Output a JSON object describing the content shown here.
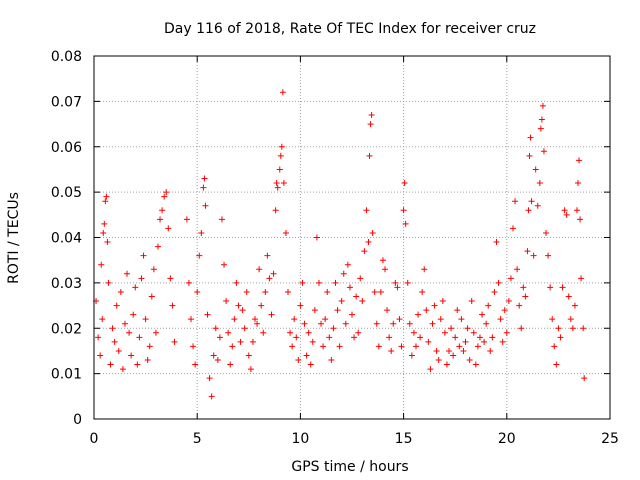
{
  "chart_data": {
    "type": "scatter",
    "title": "Day 116 of 2018, Rate Of TEC Index for receiver cruz",
    "xlabel": "GPS time / hours",
    "ylabel": "ROTI / TECUs",
    "xlim": [
      0,
      25
    ],
    "ylim": [
      0,
      0.08
    ],
    "xticks": [
      0,
      5,
      10,
      15,
      20,
      25
    ],
    "xtick_labels": [
      "0",
      "5",
      "10",
      "15",
      "20",
      "25"
    ],
    "yticks": [
      0,
      0.01,
      0.02,
      0.03,
      0.04,
      0.05,
      0.06,
      0.07,
      0.08
    ],
    "ytick_labels": [
      "0",
      "0.01",
      "0.02",
      "0.03",
      "0.04",
      "0.05",
      "0.06",
      "0.07",
      "0.08"
    ],
    "grid": true,
    "legend": "none",
    "marker": "plus",
    "marker_color": "#ff0000",
    "series": [
      {
        "name": "ROTI",
        "points": [
          [
            0.1,
            0.026
          ],
          [
            0.2,
            0.018
          ],
          [
            0.3,
            0.014
          ],
          [
            0.35,
            0.034
          ],
          [
            0.4,
            0.022
          ],
          [
            0.45,
            0.041
          ],
          [
            0.5,
            0.043
          ],
          [
            0.55,
            0.048
          ],
          [
            0.6,
            0.049
          ],
          [
            0.65,
            0.039
          ],
          [
            0.7,
            0.03
          ],
          [
            0.8,
            0.012
          ],
          [
            0.9,
            0.02
          ],
          [
            1.0,
            0.017
          ],
          [
            1.1,
            0.025
          ],
          [
            1.2,
            0.015
          ],
          [
            1.3,
            0.028
          ],
          [
            1.4,
            0.011
          ],
          [
            1.5,
            0.021
          ],
          [
            1.6,
            0.032
          ],
          [
            1.7,
            0.019
          ],
          [
            1.8,
            0.014
          ],
          [
            1.9,
            0.023
          ],
          [
            2.0,
            0.029
          ],
          [
            2.1,
            0.012
          ],
          [
            2.2,
            0.018
          ],
          [
            2.3,
            0.031
          ],
          [
            2.4,
            0.036
          ],
          [
            2.5,
            0.022
          ],
          [
            2.6,
            0.013
          ],
          [
            2.7,
            0.016
          ],
          [
            2.8,
            0.027
          ],
          [
            2.9,
            0.033
          ],
          [
            3.0,
            0.019
          ],
          [
            3.1,
            0.038
          ],
          [
            3.2,
            0.044
          ],
          [
            3.3,
            0.046
          ],
          [
            3.4,
            0.049
          ],
          [
            3.5,
            0.05
          ],
          [
            3.6,
            0.042
          ],
          [
            3.7,
            0.031
          ],
          [
            3.8,
            0.025
          ],
          [
            3.9,
            0.017
          ],
          [
            4.5,
            0.044
          ],
          [
            4.6,
            0.03
          ],
          [
            4.7,
            0.022
          ],
          [
            4.8,
            0.016
          ],
          [
            4.9,
            0.012
          ],
          [
            5.0,
            0.028
          ],
          [
            5.1,
            0.036
          ],
          [
            5.2,
            0.041
          ],
          [
            5.3,
            0.051
          ],
          [
            5.35,
            0.053
          ],
          [
            5.4,
            0.047
          ],
          [
            5.5,
            0.023
          ],
          [
            5.6,
            0.009
          ],
          [
            5.7,
            0.005
          ],
          [
            5.8,
            0.014
          ],
          [
            5.9,
            0.02
          ],
          [
            6.0,
            0.013
          ],
          [
            6.1,
            0.018
          ],
          [
            6.2,
            0.044
          ],
          [
            6.3,
            0.034
          ],
          [
            6.4,
            0.026
          ],
          [
            6.5,
            0.019
          ],
          [
            6.6,
            0.012
          ],
          [
            6.7,
            0.016
          ],
          [
            6.8,
            0.022
          ],
          [
            6.9,
            0.03
          ],
          [
            7.0,
            0.025
          ],
          [
            7.1,
            0.017
          ],
          [
            7.2,
            0.024
          ],
          [
            7.3,
            0.02
          ],
          [
            7.4,
            0.028
          ],
          [
            7.5,
            0.014
          ],
          [
            7.6,
            0.011
          ],
          [
            7.7,
            0.017
          ],
          [
            7.8,
            0.022
          ],
          [
            7.9,
            0.021
          ],
          [
            8.0,
            0.033
          ],
          [
            8.1,
            0.025
          ],
          [
            8.2,
            0.019
          ],
          [
            8.3,
            0.028
          ],
          [
            8.4,
            0.036
          ],
          [
            8.5,
            0.031
          ],
          [
            8.6,
            0.023
          ],
          [
            8.7,
            0.032
          ],
          [
            8.8,
            0.046
          ],
          [
            8.85,
            0.052
          ],
          [
            8.9,
            0.051
          ],
          [
            9.0,
            0.055
          ],
          [
            9.05,
            0.058
          ],
          [
            9.1,
            0.06
          ],
          [
            9.15,
            0.072
          ],
          [
            9.2,
            0.052
          ],
          [
            9.3,
            0.041
          ],
          [
            9.4,
            0.028
          ],
          [
            9.5,
            0.019
          ],
          [
            9.6,
            0.016
          ],
          [
            9.7,
            0.022
          ],
          [
            9.8,
            0.018
          ],
          [
            9.9,
            0.013
          ],
          [
            10.0,
            0.025
          ],
          [
            10.1,
            0.03
          ],
          [
            10.2,
            0.021
          ],
          [
            10.3,
            0.014
          ],
          [
            10.4,
            0.019
          ],
          [
            10.5,
            0.012
          ],
          [
            10.6,
            0.017
          ],
          [
            10.7,
            0.024
          ],
          [
            10.8,
            0.04
          ],
          [
            10.9,
            0.03
          ],
          [
            11.0,
            0.021
          ],
          [
            11.1,
            0.016
          ],
          [
            11.2,
            0.022
          ],
          [
            11.3,
            0.028
          ],
          [
            11.4,
            0.018
          ],
          [
            11.5,
            0.013
          ],
          [
            11.6,
            0.02
          ],
          [
            11.7,
            0.03
          ],
          [
            11.8,
            0.024
          ],
          [
            11.9,
            0.016
          ],
          [
            12.0,
            0.026
          ],
          [
            12.1,
            0.032
          ],
          [
            12.2,
            0.021
          ],
          [
            12.3,
            0.034
          ],
          [
            12.4,
            0.029
          ],
          [
            12.5,
            0.023
          ],
          [
            12.6,
            0.018
          ],
          [
            12.7,
            0.027
          ],
          [
            12.8,
            0.019
          ],
          [
            12.9,
            0.031
          ],
          [
            13.0,
            0.026
          ],
          [
            13.1,
            0.037
          ],
          [
            13.2,
            0.046
          ],
          [
            13.3,
            0.039
          ],
          [
            13.35,
            0.058
          ],
          [
            13.4,
            0.065
          ],
          [
            13.45,
            0.067
          ],
          [
            13.5,
            0.041
          ],
          [
            13.6,
            0.028
          ],
          [
            13.7,
            0.021
          ],
          [
            13.8,
            0.016
          ],
          [
            13.9,
            0.028
          ],
          [
            14.0,
            0.035
          ],
          [
            14.1,
            0.033
          ],
          [
            14.2,
            0.024
          ],
          [
            14.3,
            0.018
          ],
          [
            14.4,
            0.015
          ],
          [
            14.5,
            0.021
          ],
          [
            14.6,
            0.03
          ],
          [
            14.7,
            0.029
          ],
          [
            14.8,
            0.022
          ],
          [
            14.9,
            0.016
          ],
          [
            15.0,
            0.046
          ],
          [
            15.05,
            0.052
          ],
          [
            15.1,
            0.043
          ],
          [
            15.2,
            0.03
          ],
          [
            15.3,
            0.021
          ],
          [
            15.4,
            0.014
          ],
          [
            15.5,
            0.019
          ],
          [
            15.6,
            0.016
          ],
          [
            15.7,
            0.023
          ],
          [
            15.8,
            0.018
          ],
          [
            15.9,
            0.028
          ],
          [
            16.0,
            0.033
          ],
          [
            16.1,
            0.024
          ],
          [
            16.2,
            0.017
          ],
          [
            16.3,
            0.011
          ],
          [
            16.4,
            0.021
          ],
          [
            16.5,
            0.025
          ],
          [
            16.6,
            0.015
          ],
          [
            16.7,
            0.013
          ],
          [
            16.8,
            0.022
          ],
          [
            16.9,
            0.026
          ],
          [
            17.0,
            0.019
          ],
          [
            17.1,
            0.012
          ],
          [
            17.2,
            0.015
          ],
          [
            17.3,
            0.02
          ],
          [
            17.4,
            0.014
          ],
          [
            17.5,
            0.018
          ],
          [
            17.6,
            0.024
          ],
          [
            17.7,
            0.016
          ],
          [
            17.8,
            0.022
          ],
          [
            17.9,
            0.015
          ],
          [
            18.0,
            0.017
          ],
          [
            18.1,
            0.02
          ],
          [
            18.2,
            0.013
          ],
          [
            18.3,
            0.026
          ],
          [
            18.4,
            0.019
          ],
          [
            18.5,
            0.012
          ],
          [
            18.6,
            0.016
          ],
          [
            18.7,
            0.018
          ],
          [
            18.8,
            0.023
          ],
          [
            18.9,
            0.017
          ],
          [
            19.0,
            0.021
          ],
          [
            19.1,
            0.025
          ],
          [
            19.2,
            0.015
          ],
          [
            19.3,
            0.018
          ],
          [
            19.4,
            0.028
          ],
          [
            19.5,
            0.039
          ],
          [
            19.6,
            0.03
          ],
          [
            19.7,
            0.022
          ],
          [
            19.8,
            0.017
          ],
          [
            19.9,
            0.024
          ],
          [
            20.0,
            0.019
          ],
          [
            20.1,
            0.026
          ],
          [
            20.2,
            0.031
          ],
          [
            20.3,
            0.042
          ],
          [
            20.4,
            0.048
          ],
          [
            20.5,
            0.033
          ],
          [
            20.6,
            0.025
          ],
          [
            20.7,
            0.02
          ],
          [
            20.8,
            0.029
          ],
          [
            20.9,
            0.027
          ],
          [
            21.0,
            0.037
          ],
          [
            21.05,
            0.046
          ],
          [
            21.1,
            0.058
          ],
          [
            21.15,
            0.062
          ],
          [
            21.2,
            0.048
          ],
          [
            21.3,
            0.036
          ],
          [
            21.4,
            0.055
          ],
          [
            21.5,
            0.047
          ],
          [
            21.6,
            0.052
          ],
          [
            21.65,
            0.064
          ],
          [
            21.7,
            0.066
          ],
          [
            21.75,
            0.069
          ],
          [
            21.8,
            0.059
          ],
          [
            21.9,
            0.041
          ],
          [
            22.0,
            0.036
          ],
          [
            22.1,
            0.029
          ],
          [
            22.2,
            0.022
          ],
          [
            22.3,
            0.016
          ],
          [
            22.4,
            0.012
          ],
          [
            22.5,
            0.02
          ],
          [
            22.6,
            0.018
          ],
          [
            22.7,
            0.029
          ],
          [
            22.8,
            0.046
          ],
          [
            22.9,
            0.045
          ],
          [
            23.0,
            0.027
          ],
          [
            23.1,
            0.022
          ],
          [
            23.2,
            0.02
          ],
          [
            23.3,
            0.025
          ],
          [
            23.4,
            0.046
          ],
          [
            23.45,
            0.052
          ],
          [
            23.5,
            0.057
          ],
          [
            23.55,
            0.044
          ],
          [
            23.6,
            0.031
          ],
          [
            23.7,
            0.02
          ],
          [
            23.75,
            0.009
          ]
        ]
      }
    ]
  }
}
